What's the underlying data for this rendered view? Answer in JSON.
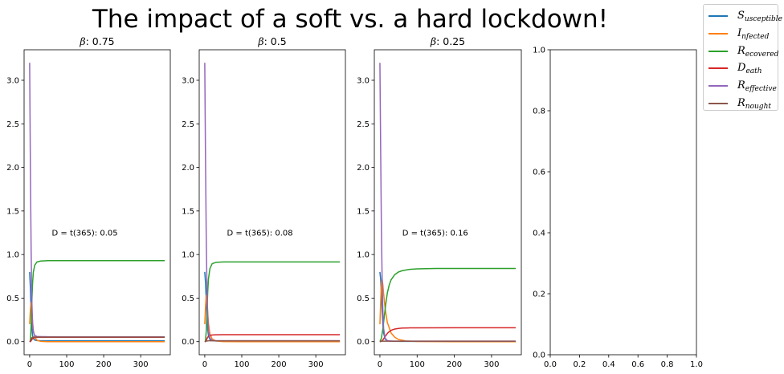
{
  "figure": {
    "title": "The impact of a soft vs. a hard lockdown!"
  },
  "legend": [
    {
      "main": "S",
      "sub": "usceptible",
      "color": "#1f77b4"
    },
    {
      "main": "I",
      "sub": "nfected",
      "color": "#ff7f0e"
    },
    {
      "main": "R",
      "sub": "ecovered",
      "color": "#2ca02c"
    },
    {
      "main": "D",
      "sub": "eath",
      "color": "#d62728"
    },
    {
      "main": "R",
      "sub": "effective",
      "color": "#9467bd"
    },
    {
      "main": "R",
      "sub": "nought",
      "color": "#8c564b"
    }
  ],
  "chart_data": [
    {
      "type": "line",
      "title_symbol": "β",
      "title_value": ": 0.75",
      "annotation": "D = t(365): 0.05",
      "annotation_x": 60,
      "annotation_y": 1.25,
      "xlim": [
        -15,
        380
      ],
      "ylim": [
        -0.15,
        3.35
      ],
      "xticks": [
        0,
        100,
        200,
        300
      ],
      "yticks": [
        0.0,
        0.5,
        1.0,
        1.5,
        2.0,
        2.5,
        3.0
      ],
      "xticklabels": [
        "0",
        "100",
        "200",
        "300"
      ],
      "yticklabels": [
        "0.0",
        "0.5",
        "1.0",
        "1.5",
        "2.0",
        "2.5",
        "3.0"
      ],
      "series": [
        {
          "key": "susceptible",
          "color": "#1f77b4",
          "x": [
            0,
            2,
            4,
            6,
            8,
            10,
            14,
            20,
            30,
            50,
            100,
            200,
            365
          ],
          "y": [
            0.8,
            0.62,
            0.35,
            0.15,
            0.07,
            0.035,
            0.018,
            0.012,
            0.01,
            0.01,
            0.01,
            0.01,
            0.01
          ]
        },
        {
          "key": "infected",
          "color": "#ff7f0e",
          "x": [
            0,
            2,
            4,
            6,
            8,
            10,
            14,
            20,
            30,
            50,
            100,
            200,
            365
          ],
          "y": [
            0.2,
            0.37,
            0.45,
            0.35,
            0.22,
            0.13,
            0.05,
            0.015,
            0.003,
            0.0,
            0.0,
            0.0,
            0.0
          ]
        },
        {
          "key": "recovered",
          "color": "#2ca02c",
          "x": [
            0,
            2,
            4,
            6,
            8,
            10,
            14,
            20,
            30,
            50,
            100,
            200,
            365
          ],
          "y": [
            0.0,
            0.01,
            0.18,
            0.47,
            0.68,
            0.8,
            0.88,
            0.915,
            0.925,
            0.93,
            0.93,
            0.93,
            0.93
          ]
        },
        {
          "key": "death",
          "color": "#d62728",
          "x": [
            0,
            2,
            4,
            6,
            8,
            10,
            14,
            20,
            30,
            50,
            100,
            200,
            365
          ],
          "y": [
            0.0,
            0.001,
            0.01,
            0.025,
            0.035,
            0.042,
            0.047,
            0.049,
            0.05,
            0.05,
            0.05,
            0.05,
            0.05
          ]
        },
        {
          "key": "effective",
          "color": "#9467bd",
          "x": [
            0,
            2,
            4,
            6,
            8,
            10,
            14,
            20,
            30,
            50,
            100,
            200,
            365
          ],
          "y": [
            3.2,
            2.0,
            1.05,
            0.45,
            0.2,
            0.11,
            0.07,
            0.06,
            0.058,
            0.056,
            0.055,
            0.055,
            0.055
          ]
        },
        {
          "key": "nought",
          "color": "#8c564b",
          "x": [
            0,
            2,
            4,
            6,
            8,
            10,
            14,
            20,
            30,
            50,
            100,
            200,
            365
          ],
          "y": [
            0.0,
            0.01,
            0.03,
            0.045,
            0.05,
            0.052,
            0.053,
            0.053,
            0.053,
            0.053,
            0.053,
            0.053,
            0.053
          ]
        }
      ]
    },
    {
      "type": "line",
      "title_symbol": "β",
      "title_value": ": 0.5",
      "annotation": "D = t(365): 0.08",
      "annotation_x": 60,
      "annotation_y": 1.25,
      "xlim": [
        -15,
        380
      ],
      "ylim": [
        -0.15,
        3.35
      ],
      "xticks": [
        0,
        100,
        200,
        300
      ],
      "yticks": [
        0.0,
        0.5,
        1.0,
        1.5,
        2.0,
        2.5,
        3.0
      ],
      "xticklabels": [
        "0",
        "100",
        "200",
        "300"
      ],
      "yticklabels": [
        "0.0",
        "0.5",
        "1.0",
        "1.5",
        "2.0",
        "2.5",
        "3.0"
      ],
      "series": [
        {
          "key": "susceptible",
          "color": "#1f77b4",
          "x": [
            0,
            2,
            4,
            6,
            8,
            10,
            14,
            20,
            30,
            50,
            100,
            200,
            365
          ],
          "y": [
            0.8,
            0.68,
            0.48,
            0.28,
            0.14,
            0.07,
            0.025,
            0.012,
            0.008,
            0.005,
            0.005,
            0.005,
            0.005
          ]
        },
        {
          "key": "infected",
          "color": "#ff7f0e",
          "x": [
            0,
            2,
            4,
            6,
            8,
            10,
            14,
            20,
            30,
            50,
            100,
            200,
            365
          ],
          "y": [
            0.2,
            0.4,
            0.53,
            0.46,
            0.33,
            0.21,
            0.09,
            0.03,
            0.008,
            0.001,
            0.0,
            0.0,
            0.0
          ]
        },
        {
          "key": "recovered",
          "color": "#2ca02c",
          "x": [
            0,
            2,
            4,
            6,
            8,
            10,
            14,
            20,
            30,
            50,
            100,
            200,
            365
          ],
          "y": [
            0.0,
            0.01,
            0.12,
            0.35,
            0.57,
            0.72,
            0.84,
            0.895,
            0.91,
            0.915,
            0.915,
            0.915,
            0.915
          ]
        },
        {
          "key": "death",
          "color": "#d62728",
          "x": [
            0,
            2,
            4,
            6,
            8,
            10,
            14,
            20,
            30,
            50,
            100,
            200,
            365
          ],
          "y": [
            0.0,
            0.002,
            0.015,
            0.035,
            0.05,
            0.062,
            0.072,
            0.077,
            0.079,
            0.08,
            0.08,
            0.08,
            0.08
          ]
        },
        {
          "key": "effective",
          "color": "#9467bd",
          "x": [
            0,
            2,
            4,
            6,
            8,
            10,
            14,
            20,
            30,
            50,
            100,
            200,
            365
          ],
          "y": [
            3.2,
            2.1,
            1.2,
            0.6,
            0.3,
            0.12,
            0.04,
            0.015,
            0.01,
            0.01,
            0.01,
            0.01,
            0.01
          ]
        },
        {
          "key": "nought",
          "color": "#8c564b",
          "x": [
            0,
            2,
            4,
            6,
            8,
            10,
            14,
            20,
            30,
            50,
            100,
            200,
            365
          ],
          "y": [
            0.0,
            0.003,
            0.006,
            0.008,
            0.009,
            0.01,
            0.01,
            0.01,
            0.01,
            0.01,
            0.01,
            0.01,
            0.01
          ]
        }
      ]
    },
    {
      "type": "line",
      "title_symbol": "β",
      "title_value": ": 0.25",
      "annotation": "D = t(365): 0.16",
      "annotation_x": 60,
      "annotation_y": 1.25,
      "xlim": [
        -15,
        380
      ],
      "ylim": [
        -0.15,
        3.35
      ],
      "xticks": [
        0,
        100,
        200,
        300
      ],
      "yticks": [
        0.0,
        0.5,
        1.0,
        1.5,
        2.0,
        2.5,
        3.0
      ],
      "xticklabels": [
        "0",
        "100",
        "200",
        "300"
      ],
      "yticklabels": [
        "0.0",
        "0.5",
        "1.0",
        "1.5",
        "2.0",
        "2.5",
        "3.0"
      ],
      "series": [
        {
          "key": "susceptible",
          "color": "#1f77b4",
          "x": [
            0,
            2,
            4,
            6,
            8,
            10,
            14,
            20,
            30,
            50,
            100,
            200,
            365
          ],
          "y": [
            0.8,
            0.72,
            0.55,
            0.35,
            0.2,
            0.1,
            0.03,
            0.01,
            0.005,
            0.003,
            0.003,
            0.003,
            0.003
          ]
        },
        {
          "key": "infected",
          "color": "#ff7f0e",
          "x": [
            0,
            2,
            4,
            6,
            8,
            10,
            14,
            20,
            30,
            40,
            50,
            70,
            100,
            200,
            365
          ],
          "y": [
            0.2,
            0.45,
            0.68,
            0.72,
            0.65,
            0.55,
            0.38,
            0.22,
            0.1,
            0.05,
            0.025,
            0.008,
            0.002,
            0.0,
            0.0
          ]
        },
        {
          "key": "recovered",
          "color": "#2ca02c",
          "x": [
            0,
            4,
            8,
            12,
            16,
            20,
            25,
            30,
            40,
            50,
            60,
            80,
            100,
            150,
            200,
            365
          ],
          "y": [
            0.0,
            0.04,
            0.15,
            0.3,
            0.44,
            0.56,
            0.65,
            0.71,
            0.77,
            0.8,
            0.815,
            0.83,
            0.835,
            0.84,
            0.84,
            0.84
          ]
        },
        {
          "key": "death",
          "color": "#d62728",
          "x": [
            0,
            4,
            8,
            12,
            16,
            20,
            25,
            30,
            40,
            50,
            60,
            80,
            100,
            200,
            365
          ],
          "y": [
            0.0,
            0.005,
            0.02,
            0.045,
            0.07,
            0.095,
            0.115,
            0.13,
            0.145,
            0.152,
            0.156,
            0.158,
            0.159,
            0.16,
            0.16
          ]
        },
        {
          "key": "effective",
          "color": "#9467bd",
          "x": [
            0,
            2,
            4,
            6,
            8,
            10,
            14,
            20,
            30,
            50,
            100,
            200,
            365
          ],
          "y": [
            3.2,
            2.2,
            1.3,
            0.7,
            0.35,
            0.15,
            0.04,
            0.012,
            0.006,
            0.005,
            0.005,
            0.005,
            0.005
          ]
        },
        {
          "key": "nought",
          "color": "#8c564b",
          "x": [
            0,
            2,
            4,
            6,
            8,
            10,
            14,
            20,
            30,
            50,
            100,
            200,
            365
          ],
          "y": [
            0.0,
            0.002,
            0.004,
            0.005,
            0.005,
            0.005,
            0.005,
            0.005,
            0.005,
            0.005,
            0.005,
            0.005,
            0.005
          ]
        }
      ]
    },
    {
      "type": "line",
      "title_symbol": "",
      "title_value": "",
      "annotation": "",
      "xlim": [
        0.0,
        1.0
      ],
      "ylim": [
        0.0,
        1.0
      ],
      "xticks": [
        0.0,
        0.2,
        0.4,
        0.6,
        0.8,
        1.0
      ],
      "yticks": [
        0.0,
        0.2,
        0.4,
        0.6,
        0.8,
        1.0
      ],
      "xticklabels": [
        "0.0",
        "0.2",
        "0.4",
        "0.6",
        "0.8",
        "1.0"
      ],
      "yticklabels": [
        "0.0",
        "0.2",
        "0.4",
        "0.6",
        "0.8",
        "1.0"
      ],
      "series": []
    }
  ]
}
